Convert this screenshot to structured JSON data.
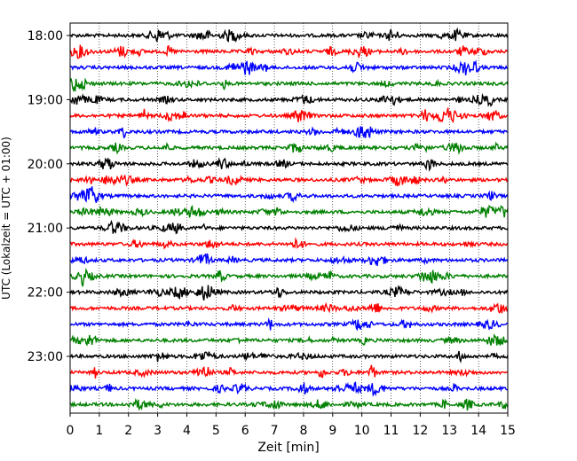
{
  "chart_data": {
    "type": "line",
    "title": "",
    "xlabel": "Zeit  [min]",
    "ylabel": "UTC (Lokalzeit = UTC + 01:00)",
    "xlim": [
      0,
      15
    ],
    "x_ticks": [
      0,
      1,
      2,
      3,
      4,
      5,
      6,
      7,
      8,
      9,
      10,
      11,
      12,
      13,
      14,
      15
    ],
    "y_tick_labels": [
      "18:00",
      "19:00",
      "20:00",
      "21:00",
      "22:00",
      "23:00"
    ],
    "grid": "vertical dotted lines at each minute",
    "colors": [
      "#000000",
      "#ff0000",
      "#0000ff",
      "#008000"
    ],
    "series": [
      {
        "start": "18:00",
        "color": "#000000"
      },
      {
        "start": "18:15",
        "color": "#ff0000"
      },
      {
        "start": "18:30",
        "color": "#0000ff"
      },
      {
        "start": "18:45",
        "color": "#008000"
      },
      {
        "start": "19:00",
        "color": "#000000"
      },
      {
        "start": "19:15",
        "color": "#ff0000"
      },
      {
        "start": "19:30",
        "color": "#0000ff"
      },
      {
        "start": "19:45",
        "color": "#008000"
      },
      {
        "start": "20:00",
        "color": "#000000"
      },
      {
        "start": "20:15",
        "color": "#ff0000"
      },
      {
        "start": "20:30",
        "color": "#0000ff"
      },
      {
        "start": "20:45",
        "color": "#008000"
      },
      {
        "start": "21:00",
        "color": "#000000"
      },
      {
        "start": "21:15",
        "color": "#ff0000"
      },
      {
        "start": "21:30",
        "color": "#0000ff"
      },
      {
        "start": "21:45",
        "color": "#008000"
      },
      {
        "start": "22:00",
        "color": "#000000"
      },
      {
        "start": "22:15",
        "color": "#ff0000"
      },
      {
        "start": "22:30",
        "color": "#0000ff"
      },
      {
        "start": "22:45",
        "color": "#008000"
      },
      {
        "start": "23:00",
        "color": "#000000"
      },
      {
        "start": "23:15",
        "color": "#ff0000"
      },
      {
        "start": "23:30",
        "color": "#0000ff"
      },
      {
        "start": "23:45",
        "color": "#008000"
      }
    ]
  }
}
